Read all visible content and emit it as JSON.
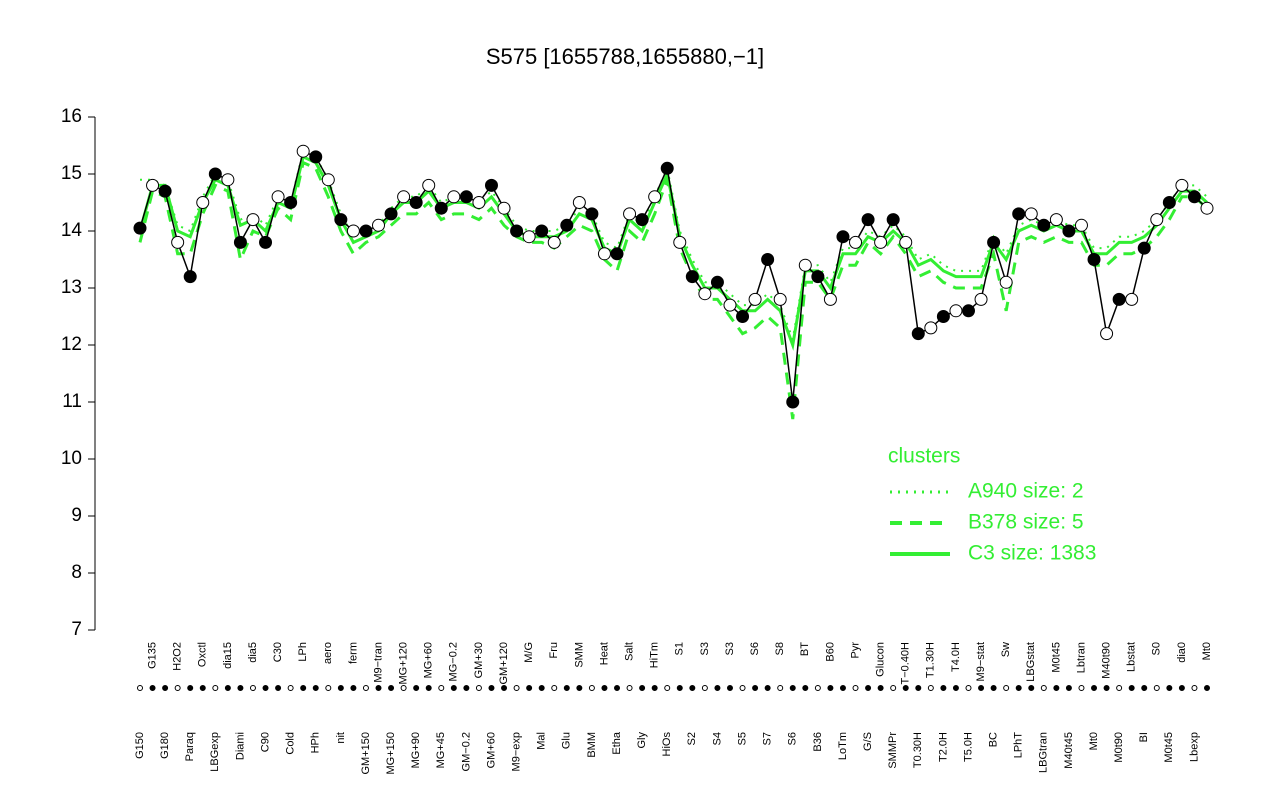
{
  "chart_data": {
    "type": "line",
    "title": "S575 [1655788,1655880,−1]",
    "categories": [
      "G150",
      "G135",
      "G180",
      "H2O2",
      "Paraq",
      "Oxctl",
      "LBGexp",
      "dia15",
      "Diami",
      "dia5",
      "C90",
      "C30",
      "Cold",
      "LPh",
      "HPh",
      "aero",
      "nit",
      "ferm",
      "GM+150",
      "M9−tran",
      "MG+150",
      "MG+120",
      "MG+90",
      "MG+60",
      "MG+45",
      "MG−0.2",
      "GM−0.2",
      "GM+30",
      "GM+60",
      "GM+120",
      "M9−exp",
      "M/G",
      "Mal",
      "Fru",
      "Glu",
      "SMM",
      "BMM",
      "Heat",
      "Etha",
      "Salt",
      "Gly",
      "HiTm",
      "HiOs",
      "S1",
      "S2",
      "S3",
      "S4",
      "S3",
      "S5",
      "S6",
      "S7",
      "S8",
      "S6",
      "BT",
      "B36",
      "B60",
      "LoTm",
      "Pyr",
      "G/S",
      "Glucon",
      "SMMPr",
      "T−0.40H",
      "T0.30H",
      "T1.30H",
      "T2.0H",
      "T4.0H",
      "T5.0H",
      "M9−stat",
      "BC",
      "Sw",
      "LPhT",
      "LBGstat",
      "LBGtran",
      "M0t45",
      "M40t45",
      "Lbtran",
      "Mt0",
      "M40t90",
      "M0t90",
      "Lbstat",
      "BI",
      "S0",
      "M0t45",
      "dia0",
      "Lbexp",
      "Mt0"
    ],
    "points": [
      14.05,
      14.8,
      14.7,
      13.8,
      13.2,
      14.5,
      15.0,
      14.9,
      13.8,
      14.2,
      13.8,
      14.6,
      14.5,
      15.4,
      15.3,
      14.9,
      14.2,
      14.0,
      14.0,
      14.1,
      14.3,
      14.6,
      14.5,
      14.8,
      14.4,
      14.6,
      14.6,
      14.5,
      14.8,
      14.4,
      14.0,
      13.9,
      14.0,
      13.8,
      14.1,
      14.5,
      14.3,
      13.6,
      13.6,
      14.3,
      14.2,
      14.6,
      15.1,
      13.8,
      13.2,
      12.9,
      13.1,
      12.7,
      12.5,
      12.8,
      13.5,
      12.8,
      11.0,
      13.4,
      13.2,
      12.8,
      13.9,
      13.8,
      14.2,
      13.8,
      14.2,
      13.8,
      12.2,
      12.3,
      12.5,
      12.6,
      12.6,
      12.8,
      13.8,
      13.1,
      14.3,
      14.3,
      14.1,
      14.2,
      14.0,
      14.1,
      13.5,
      12.2,
      12.8,
      12.8,
      13.7,
      14.2,
      14.5,
      14.8,
      14.6,
      14.4
    ],
    "legend_title": "clusters",
    "series": [
      {
        "name": "A940 size: 2",
        "color": "#33ee33",
        "dash": "dotted",
        "values": [
          14.9,
          14.9,
          14.8,
          14.1,
          14.0,
          14.6,
          15.0,
          14.9,
          14.2,
          14.3,
          14.1,
          14.6,
          14.5,
          15.4,
          15.3,
          14.9,
          14.3,
          13.9,
          14.0,
          14.1,
          14.4,
          14.6,
          14.6,
          14.8,
          14.5,
          14.6,
          14.6,
          14.5,
          14.7,
          14.4,
          14.1,
          14.0,
          14.0,
          14.0,
          14.1,
          14.4,
          14.3,
          13.8,
          13.7,
          14.3,
          14.1,
          14.6,
          15.1,
          14.0,
          13.5,
          13.1,
          13.1,
          12.9,
          12.7,
          12.7,
          12.9,
          12.7,
          12.1,
          13.4,
          13.4,
          13.1,
          13.7,
          13.7,
          14.0,
          13.9,
          14.1,
          13.9,
          13.5,
          13.6,
          13.4,
          13.3,
          13.3,
          13.3,
          13.9,
          13.6,
          14.1,
          14.2,
          14.1,
          14.2,
          14.1,
          14.1,
          13.7,
          13.7,
          13.9,
          13.9,
          14.0,
          14.2,
          14.5,
          14.8,
          14.8,
          14.6
        ]
      },
      {
        "name": "B378 size: 5",
        "color": "#33ee33",
        "dash": "dashed",
        "values": [
          13.8,
          14.7,
          14.6,
          13.6,
          13.6,
          14.3,
          14.8,
          14.7,
          13.5,
          14.0,
          13.9,
          14.4,
          14.2,
          15.2,
          15.1,
          14.6,
          14.0,
          13.6,
          13.8,
          13.9,
          14.1,
          14.3,
          14.3,
          14.5,
          14.2,
          14.3,
          14.3,
          14.2,
          14.4,
          14.1,
          13.9,
          13.8,
          13.8,
          13.7,
          13.9,
          14.1,
          14.0,
          13.5,
          13.3,
          14.0,
          13.8,
          14.3,
          14.9,
          13.7,
          13.2,
          12.8,
          12.8,
          12.5,
          12.2,
          12.3,
          12.5,
          12.3,
          10.7,
          13.1,
          13.1,
          12.8,
          13.4,
          13.4,
          13.8,
          13.6,
          13.9,
          13.6,
          13.2,
          13.3,
          13.1,
          13.0,
          13.0,
          13.0,
          13.6,
          12.6,
          13.8,
          13.9,
          13.8,
          13.9,
          13.8,
          13.8,
          13.4,
          13.4,
          13.6,
          13.6,
          13.7,
          13.9,
          14.2,
          14.6,
          14.6,
          14.4
        ]
      },
      {
        "name": "C3 size: 1383",
        "color": "#33ee33",
        "dash": "solid",
        "values": [
          14.0,
          14.8,
          14.8,
          14.0,
          13.9,
          14.5,
          14.9,
          14.8,
          14.1,
          14.2,
          14.0,
          14.5,
          14.4,
          15.3,
          15.2,
          14.8,
          14.2,
          13.8,
          13.9,
          14.0,
          14.3,
          14.5,
          14.5,
          14.7,
          14.4,
          14.5,
          14.5,
          14.4,
          14.6,
          14.3,
          14.0,
          13.9,
          13.9,
          13.9,
          14.0,
          14.3,
          14.2,
          13.7,
          13.6,
          14.2,
          14.0,
          14.5,
          15.0,
          13.9,
          13.4,
          13.0,
          13.0,
          12.8,
          12.6,
          12.6,
          12.8,
          12.6,
          12.0,
          13.3,
          13.3,
          13.0,
          13.6,
          13.6,
          13.9,
          13.8,
          14.0,
          13.8,
          13.4,
          13.5,
          13.3,
          13.2,
          13.2,
          13.2,
          13.8,
          13.5,
          14.0,
          14.1,
          14.0,
          14.1,
          14.0,
          14.0,
          13.6,
          13.6,
          13.8,
          13.8,
          13.9,
          14.1,
          14.4,
          14.7,
          14.7,
          14.5
        ]
      }
    ],
    "ylim": [
      7,
      16
    ],
    "yticks": [
      7,
      8,
      9,
      10,
      11,
      12,
      13,
      14,
      15,
      16
    ]
  }
}
